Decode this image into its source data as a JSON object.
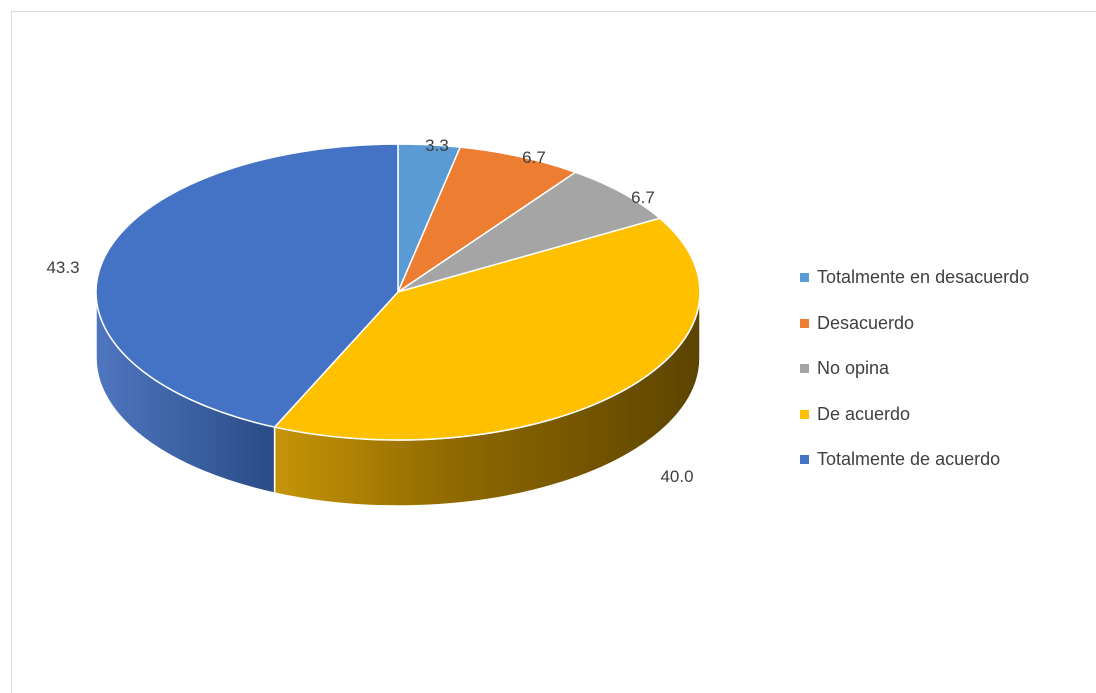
{
  "chart_data": {
    "type": "pie",
    "style": "3d",
    "title": "",
    "categories": [
      "Totalmente en desacuerdo",
      "Desacuerdo",
      "No opina",
      "De acuerdo",
      "Totalmente de acuerdo"
    ],
    "values": [
      3.3,
      6.7,
      6.7,
      40.0,
      43.3
    ],
    "value_labels": [
      "3.3",
      "6.7",
      "6.7",
      "40.0",
      "43.3"
    ],
    "colors": [
      "#5b9bd5",
      "#ed7d31",
      "#a5a5a5",
      "#ffc000",
      "#4472c4"
    ],
    "legend_position": "right"
  }
}
